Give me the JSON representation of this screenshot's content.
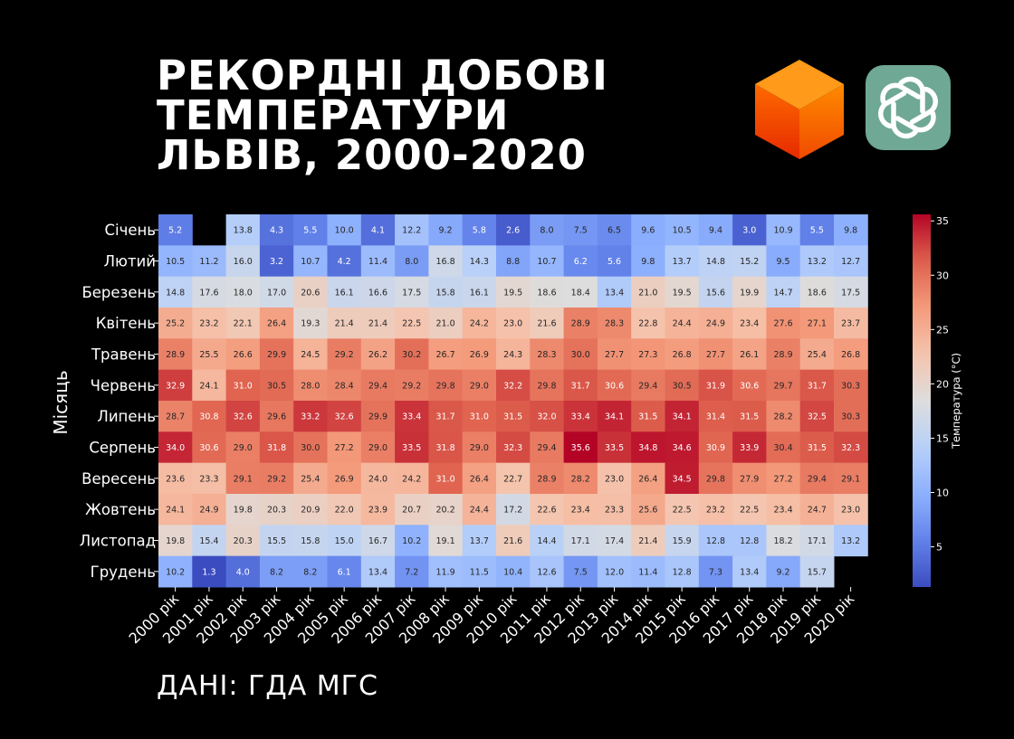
{
  "title_lines": [
    "РЕКОРДНІ ДОБОВІ",
    "ТЕМПЕРАТУРИ",
    "ЛЬВІВ, 2000-2020"
  ],
  "source": "ДАНІ: ГДА МГС",
  "logos": {
    "cube": "cube-logo-icon",
    "openai": "openai-logo-icon",
    "openai_bg": "#6fa894"
  },
  "chart_data": {
    "type": "heatmap",
    "ylabel": "Місяць",
    "xlabel": "",
    "colorbar_label": "Температура (°C)",
    "colorbar_ticks": [
      5,
      10,
      15,
      20,
      25,
      30,
      35
    ],
    "vmin": 1.3,
    "vmax": 35.6,
    "colormap": "coolwarm",
    "rows": [
      "Січень",
      "Лютий",
      "Березень",
      "Квітень",
      "Травень",
      "Червень",
      "Липень",
      "Серпень",
      "Вересень",
      "Жовтень",
      "Листопад",
      "Грудень"
    ],
    "columns": [
      "2000 рік",
      "2001 рік",
      "2002 рік",
      "2003 рік",
      "2004 рік",
      "2005 рік",
      "2006 рік",
      "2007 рік",
      "2008 рік",
      "2009 рік",
      "2010 рік",
      "2011 рік",
      "2012 рік",
      "2013 рік",
      "2014 рік",
      "2015 рік",
      "2016 рік",
      "2017 рік",
      "2018 рік",
      "2019 рік",
      "2020 рік"
    ],
    "values": [
      [
        5.2,
        null,
        13.8,
        4.3,
        5.5,
        10.0,
        4.1,
        12.2,
        9.2,
        5.8,
        2.6,
        8.0,
        7.5,
        6.5,
        9.6,
        10.5,
        9.4,
        3.0,
        10.9,
        5.5,
        9.8
      ],
      [
        10.5,
        11.2,
        16.0,
        3.2,
        10.7,
        4.2,
        11.4,
        8.0,
        16.8,
        14.3,
        8.8,
        10.7,
        6.2,
        5.6,
        9.8,
        13.7,
        14.8,
        15.2,
        9.5,
        13.2,
        12.7
      ],
      [
        14.8,
        17.6,
        18.0,
        17.0,
        20.6,
        16.1,
        16.6,
        17.5,
        15.8,
        16.1,
        19.5,
        18.6,
        18.4,
        13.4,
        21.0,
        19.5,
        15.6,
        19.9,
        14.7,
        18.6,
        17.5
      ],
      [
        25.2,
        23.2,
        22.1,
        26.4,
        19.3,
        21.4,
        21.4,
        22.5,
        21.0,
        24.2,
        23.0,
        21.6,
        28.9,
        28.3,
        22.8,
        24.4,
        24.9,
        23.4,
        27.6,
        27.1,
        23.7
      ],
      [
        28.9,
        25.5,
        26.6,
        29.9,
        24.5,
        29.2,
        26.2,
        30.2,
        26.7,
        26.9,
        24.3,
        28.3,
        30.0,
        27.7,
        27.3,
        26.8,
        27.7,
        26.1,
        28.9,
        25.4,
        26.8
      ],
      [
        32.9,
        24.1,
        31.0,
        30.5,
        28.0,
        28.4,
        29.4,
        29.2,
        29.8,
        29.0,
        32.2,
        29.8,
        31.7,
        30.6,
        29.4,
        30.5,
        31.9,
        30.6,
        29.7,
        31.7,
        30.3
      ],
      [
        28.7,
        30.8,
        32.6,
        29.6,
        33.2,
        32.6,
        29.9,
        33.4,
        31.7,
        31.0,
        31.5,
        32.0,
        33.4,
        34.1,
        31.5,
        34.1,
        31.4,
        31.5,
        28.2,
        32.5,
        30.3
      ],
      [
        34.0,
        30.6,
        29.0,
        31.8,
        30.0,
        27.2,
        29.0,
        33.5,
        31.8,
        29.0,
        32.3,
        29.4,
        35.6,
        33.5,
        34.8,
        34.6,
        30.9,
        33.9,
        30.4,
        31.5,
        32.3
      ],
      [
        23.6,
        23.3,
        29.1,
        29.2,
        25.4,
        26.9,
        24.0,
        24.2,
        31.0,
        26.4,
        22.7,
        28.9,
        28.2,
        23.0,
        26.4,
        34.5,
        29.8,
        27.9,
        27.2,
        29.4,
        29.1
      ],
      [
        24.1,
        24.9,
        19.8,
        20.3,
        20.9,
        22.0,
        23.9,
        20.7,
        20.2,
        24.4,
        17.2,
        22.6,
        23.4,
        23.3,
        25.6,
        22.5,
        23.2,
        22.5,
        23.4,
        24.7,
        23.0
      ],
      [
        19.8,
        15.4,
        20.3,
        15.5,
        15.8,
        15.0,
        16.7,
        10.2,
        19.1,
        13.7,
        21.6,
        14.4,
        17.1,
        17.4,
        21.4,
        15.9,
        12.8,
        12.8,
        18.2,
        17.1,
        13.2
      ],
      [
        10.2,
        1.3,
        4.0,
        8.2,
        8.2,
        6.1,
        13.4,
        7.2,
        11.9,
        11.5,
        10.4,
        12.6,
        7.5,
        12.0,
        11.4,
        12.8,
        7.3,
        13.4,
        9.2,
        15.7,
        null
      ]
    ]
  }
}
